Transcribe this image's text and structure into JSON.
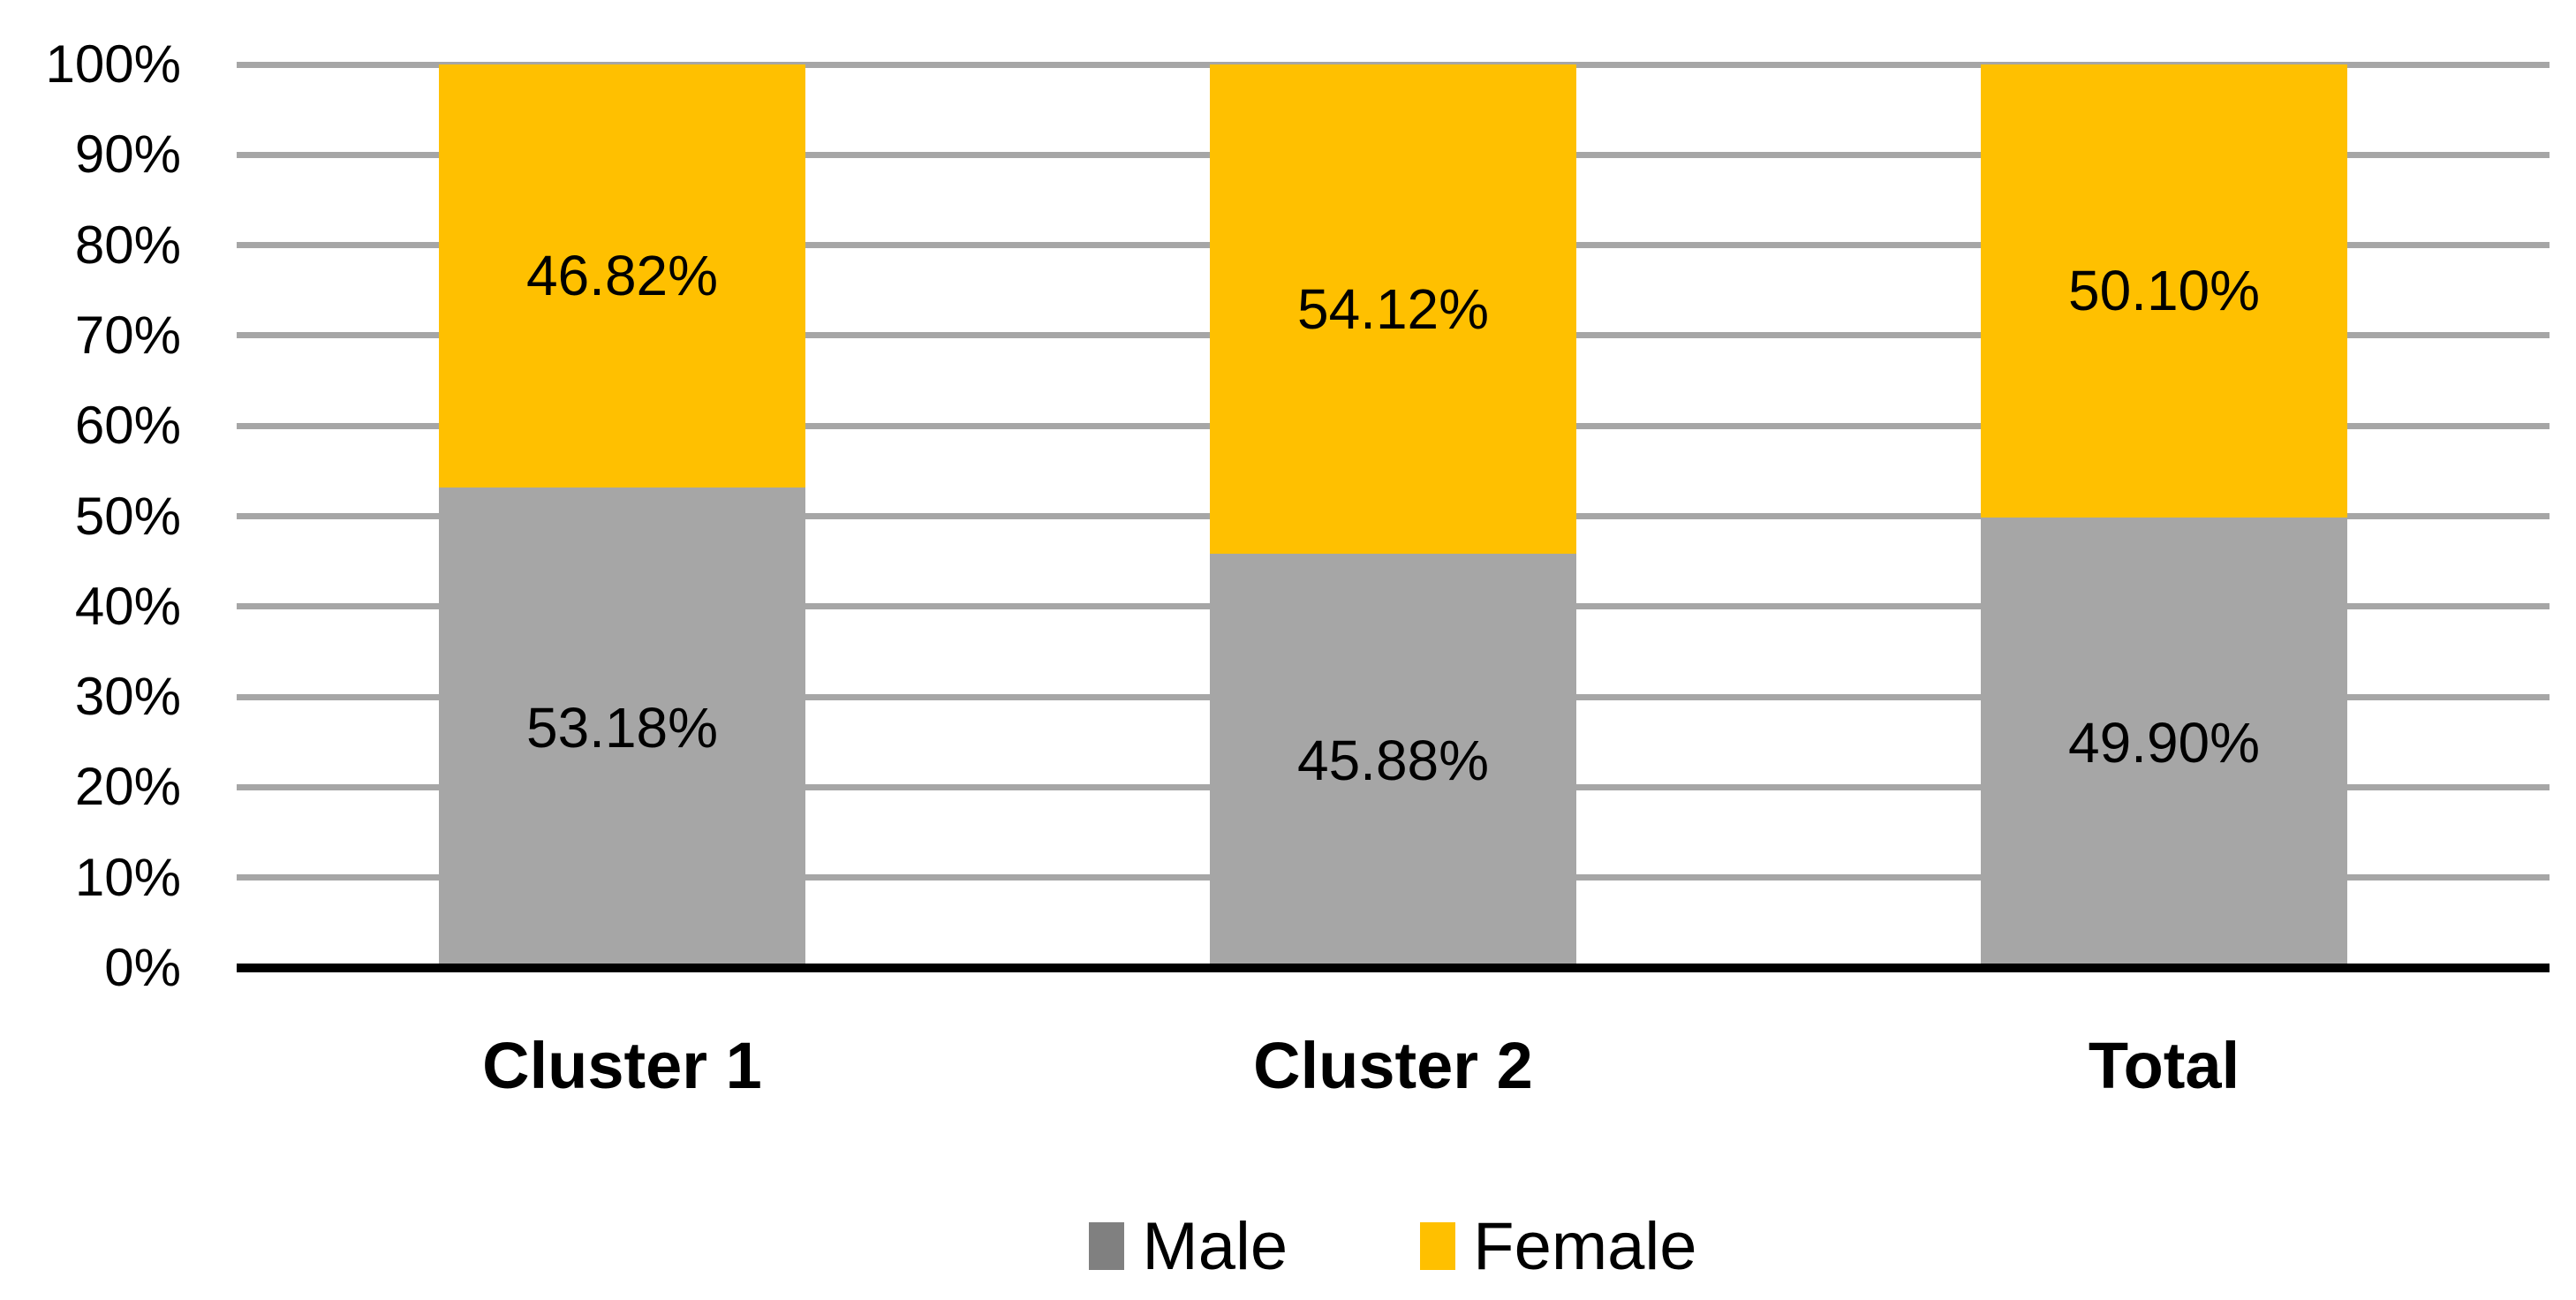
{
  "chart_data": {
    "type": "bar",
    "stacked": true,
    "stacking": "percent",
    "title": "",
    "categories": [
      "Cluster 1",
      "Cluster 2",
      "Total"
    ],
    "series": [
      {
        "name": "Male",
        "values": [
          53.18,
          45.88,
          49.9
        ],
        "labels": [
          "53.18%",
          "45.88%",
          "49.90%"
        ],
        "bar_color": "#A6A6A6",
        "legend_color": "#808080"
      },
      {
        "name": "Female",
        "values": [
          46.82,
          54.12,
          50.1
        ],
        "labels": [
          "46.82%",
          "54.12%",
          "50.10%"
        ],
        "bar_color": "#FFC000",
        "legend_color": "#FFC000"
      }
    ],
    "y_axis": {
      "min": 0,
      "max": 100,
      "step": 10,
      "ticks": [
        "0%",
        "10%",
        "20%",
        "30%",
        "40%",
        "50%",
        "60%",
        "70%",
        "80%",
        "90%",
        "100%"
      ]
    },
    "legend": {
      "position": "bottom",
      "entries": [
        "Male",
        "Female"
      ]
    },
    "grid": true,
    "gridline_color": "#A6A6A6",
    "axis_line_color": "#000000",
    "label_color": "#000000",
    "background": "#FFFFFF"
  }
}
